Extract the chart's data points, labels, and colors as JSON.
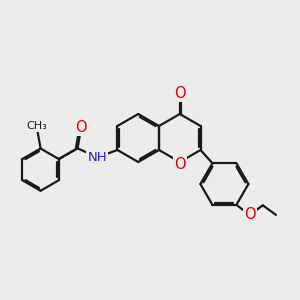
{
  "bg_color": "#ececec",
  "bond_color": "#1a1a1a",
  "bond_width": 1.6,
  "atom_colors": {
    "O": "#e00000",
    "N": "#2020cc",
    "C": "#1a1a1a"
  },
  "font_size": 9.5,
  "figsize": [
    3.0,
    3.0
  ],
  "dpi": 100,
  "scale": 0.8
}
